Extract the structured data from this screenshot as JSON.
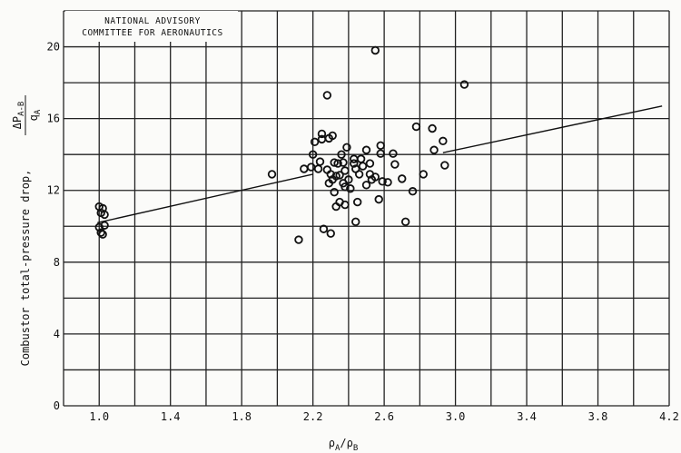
{
  "chart_data": {
    "type": "scatter",
    "title": "",
    "org_label_lines": [
      "NATIONAL ADVISORY",
      "COMMITTEE FOR AERONAUTICS"
    ],
    "xlabel": {
      "base1": "ρ",
      "sub1": "A",
      "sep": "/",
      "base2": "ρ",
      "sub2": "B"
    },
    "ylabel": {
      "text": "Combustor total-pressure drop,",
      "numerator_base": "ΔP",
      "numerator_sub": "A-B",
      "denominator_base": "q",
      "denominator_sub": "A"
    },
    "xlim": [
      0.8,
      4.2
    ],
    "ylim": [
      0,
      22
    ],
    "x_ticks": [
      {
        "value": 1.0,
        "label": "1.0"
      },
      {
        "value": 1.4,
        "label": "1.4"
      },
      {
        "value": 1.8,
        "label": "1.8"
      },
      {
        "value": 2.2,
        "label": "2.2"
      },
      {
        "value": 2.6,
        "label": "2.6"
      },
      {
        "value": 3.0,
        "label": "3.0"
      },
      {
        "value": 3.4,
        "label": "3.4"
      },
      {
        "value": 3.8,
        "label": "3.8"
      },
      {
        "value": 4.2,
        "label": "4.2"
      }
    ],
    "y_ticks": [
      {
        "value": 0,
        "label": "0"
      },
      {
        "value": 4,
        "label": "4"
      },
      {
        "value": 8,
        "label": "8"
      },
      {
        "value": 12,
        "label": "12"
      },
      {
        "value": 16,
        "label": "16"
      },
      {
        "value": 20,
        "label": "20"
      }
    ],
    "grid": true,
    "grid_x_step": 0.2,
    "grid_y_step": 2,
    "fit_line": [
      {
        "x": 0.99,
        "y": 10.2
      },
      {
        "x": 2.2,
        "y": 12.9
      },
      {
        "x": 2.93,
        "y": 14.1
      },
      {
        "x": 4.16,
        "y": 16.7
      }
    ],
    "points": [
      {
        "x": 1.0,
        "y": 11.1
      },
      {
        "x": 1.01,
        "y": 10.75
      },
      {
        "x": 1.02,
        "y": 11.0
      },
      {
        "x": 1.03,
        "y": 10.65
      },
      {
        "x": 1.0,
        "y": 9.95
      },
      {
        "x": 1.01,
        "y": 9.65
      },
      {
        "x": 1.02,
        "y": 9.55
      },
      {
        "x": 1.03,
        "y": 10.05
      },
      {
        "x": 1.97,
        "y": 12.9
      },
      {
        "x": 2.15,
        "y": 13.2
      },
      {
        "x": 2.19,
        "y": 13.3
      },
      {
        "x": 2.2,
        "y": 14.0
      },
      {
        "x": 2.21,
        "y": 14.7
      },
      {
        "x": 2.23,
        "y": 13.2
      },
      {
        "x": 2.24,
        "y": 13.6
      },
      {
        "x": 2.25,
        "y": 15.15
      },
      {
        "x": 2.25,
        "y": 14.85
      },
      {
        "x": 2.26,
        "y": 9.85
      },
      {
        "x": 2.28,
        "y": 13.15
      },
      {
        "x": 2.28,
        "y": 17.3
      },
      {
        "x": 2.29,
        "y": 14.9
      },
      {
        "x": 2.29,
        "y": 12.4
      },
      {
        "x": 2.3,
        "y": 12.9
      },
      {
        "x": 2.3,
        "y": 9.6
      },
      {
        "x": 2.31,
        "y": 15.05
      },
      {
        "x": 2.31,
        "y": 12.6
      },
      {
        "x": 2.32,
        "y": 13.55
      },
      {
        "x": 2.32,
        "y": 11.9
      },
      {
        "x": 2.33,
        "y": 12.8
      },
      {
        "x": 2.33,
        "y": 11.1
      },
      {
        "x": 2.34,
        "y": 13.5
      },
      {
        "x": 2.35,
        "y": 12.85
      },
      {
        "x": 2.35,
        "y": 11.35
      },
      {
        "x": 2.36,
        "y": 14.0
      },
      {
        "x": 2.37,
        "y": 13.55
      },
      {
        "x": 2.37,
        "y": 12.4
      },
      {
        "x": 2.38,
        "y": 13.1
      },
      {
        "x": 2.38,
        "y": 12.2
      },
      {
        "x": 2.38,
        "y": 11.2
      },
      {
        "x": 2.39,
        "y": 14.4
      },
      {
        "x": 2.4,
        "y": 12.6
      },
      {
        "x": 2.41,
        "y": 12.1
      },
      {
        "x": 2.43,
        "y": 13.5
      },
      {
        "x": 2.43,
        "y": 13.75
      },
      {
        "x": 2.44,
        "y": 13.2
      },
      {
        "x": 2.44,
        "y": 10.25
      },
      {
        "x": 2.45,
        "y": 11.35
      },
      {
        "x": 2.46,
        "y": 12.9
      },
      {
        "x": 2.47,
        "y": 13.75
      },
      {
        "x": 2.48,
        "y": 13.35
      },
      {
        "x": 2.5,
        "y": 14.25
      },
      {
        "x": 2.5,
        "y": 12.3
      },
      {
        "x": 2.52,
        "y": 13.5
      },
      {
        "x": 2.52,
        "y": 12.9
      },
      {
        "x": 2.53,
        "y": 12.6
      },
      {
        "x": 2.55,
        "y": 19.8
      },
      {
        "x": 2.55,
        "y": 12.75
      },
      {
        "x": 2.57,
        "y": 11.5
      },
      {
        "x": 2.58,
        "y": 14.5
      },
      {
        "x": 2.58,
        "y": 14.05
      },
      {
        "x": 2.59,
        "y": 12.5
      },
      {
        "x": 2.62,
        "y": 12.45
      },
      {
        "x": 2.65,
        "y": 14.05
      },
      {
        "x": 2.66,
        "y": 13.45
      },
      {
        "x": 2.7,
        "y": 12.65
      },
      {
        "x": 2.72,
        "y": 10.25
      },
      {
        "x": 2.76,
        "y": 11.95
      },
      {
        "x": 2.78,
        "y": 15.55
      },
      {
        "x": 2.82,
        "y": 12.9
      },
      {
        "x": 2.87,
        "y": 15.45
      },
      {
        "x": 2.88,
        "y": 14.25
      },
      {
        "x": 2.93,
        "y": 14.75
      },
      {
        "x": 2.94,
        "y": 13.4
      },
      {
        "x": 3.05,
        "y": 17.9
      },
      {
        "x": 2.12,
        "y": 9.25
      }
    ]
  }
}
